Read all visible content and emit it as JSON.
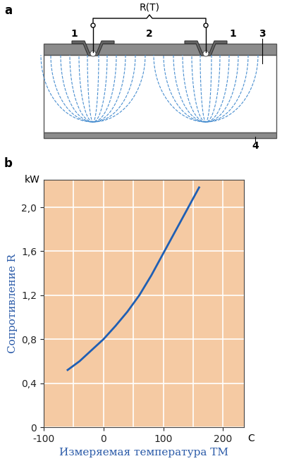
{
  "diagram": {
    "panel_label": "a",
    "resistance_label": "R(T)",
    "callouts": {
      "contact": "1",
      "layer_top": "2",
      "body": "3",
      "layer_bottom": "4"
    }
  },
  "chart_data": {
    "type": "line",
    "panel_label": "b",
    "x_label": "Измеряемая температура TM",
    "y_label": "Сопротивление R",
    "x_unit": "C",
    "y_unit": "kW",
    "x": [
      -60,
      -40,
      -20,
      0,
      20,
      40,
      60,
      80,
      100,
      120,
      140,
      160
    ],
    "values": [
      0.52,
      0.6,
      0.7,
      0.8,
      0.92,
      1.05,
      1.2,
      1.38,
      1.58,
      1.78,
      1.98,
      2.18
    ],
    "color": "#1f5fb4",
    "xlim": [
      -100,
      235
    ],
    "ylim": [
      0,
      2.25
    ],
    "xticks": [
      -100,
      0,
      100,
      200
    ],
    "xgrid": [
      -50,
      50,
      150
    ],
    "yticks": [
      0,
      {
        "value": 0.4,
        "label": "0,4"
      },
      {
        "value": 0.8,
        "label": "0,8"
      },
      {
        "value": 1.2,
        "label": "1,2"
      },
      {
        "value": 1.6,
        "label": "1,6"
      },
      {
        "value": 2.0,
        "label": "2,0"
      }
    ],
    "grid": true
  }
}
